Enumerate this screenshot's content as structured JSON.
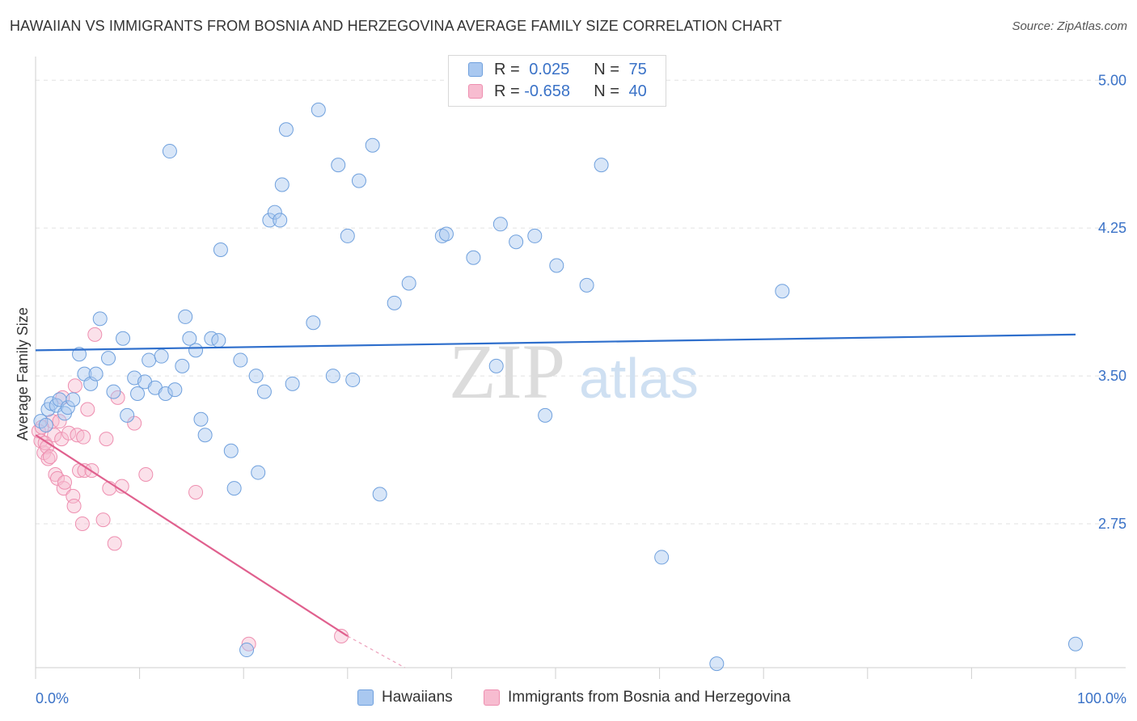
{
  "title": "HAWAIIAN VS IMMIGRANTS FROM BOSNIA AND HERZEGOVINA AVERAGE FAMILY SIZE CORRELATION CHART",
  "source": "Source: ZipAtlas.com",
  "watermark": {
    "zip": "ZIP",
    "atlas": "atlas"
  },
  "legend": {
    "series1": {
      "r_label": "R = ",
      "r_value": "0.025",
      "n_label": "N = ",
      "n_value": "75"
    },
    "series2": {
      "r_label": "R = ",
      "r_value": "-0.658",
      "n_label": "N = ",
      "n_value": "40"
    }
  },
  "colors": {
    "blue_fill": "#a9c8f0",
    "blue_stroke": "#6fa0dd",
    "blue_line": "#2f6fcc",
    "pink_fill": "#f7bcd0",
    "pink_stroke": "#ee8fb0",
    "pink_line": "#e0608e",
    "tick_label": "#3a72c7",
    "grid": "#e2e2e2"
  },
  "chart_data": {
    "type": "scatter",
    "title": "HAWAIIAN VS IMMIGRANTS FROM BOSNIA AND HERZEGOVINA AVERAGE FAMILY SIZE CORRELATION CHART",
    "xlabel": "",
    "ylabel": "Average Family Size",
    "xlim": [
      0,
      100
    ],
    "ylim": [
      2.02,
      5.12
    ],
    "x_tick_labels": [
      "0.0%",
      "100.0%"
    ],
    "y_ticks": [
      2.75,
      3.5,
      4.25,
      5.0
    ],
    "y_tick_labels": [
      "2.75",
      "3.50",
      "4.25",
      "5.00"
    ],
    "series": [
      {
        "name": "Hawaiians",
        "color": "blue",
        "trend": {
          "x": [
            0,
            100
          ],
          "y": [
            3.63,
            3.71
          ]
        },
        "points": [
          [
            0.5,
            3.27
          ],
          [
            1,
            3.25
          ],
          [
            1.2,
            3.33
          ],
          [
            1.5,
            3.36
          ],
          [
            2,
            3.35
          ],
          [
            2.3,
            3.38
          ],
          [
            2.8,
            3.31
          ],
          [
            3.1,
            3.34
          ],
          [
            3.6,
            3.38
          ],
          [
            4.2,
            3.61
          ],
          [
            4.7,
            3.51
          ],
          [
            5.3,
            3.46
          ],
          [
            5.8,
            3.51
          ],
          [
            6.2,
            3.79
          ],
          [
            7,
            3.59
          ],
          [
            7.5,
            3.42
          ],
          [
            8.4,
            3.69
          ],
          [
            8.8,
            3.3
          ],
          [
            9.5,
            3.49
          ],
          [
            9.8,
            3.41
          ],
          [
            10.5,
            3.47
          ],
          [
            10.9,
            3.58
          ],
          [
            11.5,
            3.44
          ],
          [
            12.1,
            3.6
          ],
          [
            12.5,
            3.41
          ],
          [
            13.4,
            3.43
          ],
          [
            12.9,
            4.64
          ],
          [
            14.1,
            3.55
          ],
          [
            14.4,
            3.8
          ],
          [
            14.8,
            3.69
          ],
          [
            15.4,
            3.63
          ],
          [
            15.9,
            3.28
          ],
          [
            16.3,
            3.2
          ],
          [
            16.9,
            3.69
          ],
          [
            17.6,
            3.68
          ],
          [
            17.8,
            4.14
          ],
          [
            18.8,
            3.12
          ],
          [
            19.1,
            2.93
          ],
          [
            19.7,
            3.58
          ],
          [
            20.3,
            2.11
          ],
          [
            21.2,
            3.5
          ],
          [
            21.4,
            3.01
          ],
          [
            22,
            3.42
          ],
          [
            22.5,
            4.29
          ],
          [
            23,
            4.33
          ],
          [
            23.5,
            4.29
          ],
          [
            23.7,
            4.47
          ],
          [
            24.1,
            4.75
          ],
          [
            24.7,
            3.46
          ],
          [
            26.7,
            3.77
          ],
          [
            27.2,
            4.85
          ],
          [
            28.6,
            3.5
          ],
          [
            29.1,
            4.57
          ],
          [
            30,
            4.21
          ],
          [
            30.5,
            3.48
          ],
          [
            31.1,
            4.49
          ],
          [
            32.4,
            4.67
          ],
          [
            33.1,
            2.9
          ],
          [
            34.5,
            3.87
          ],
          [
            35.9,
            3.97
          ],
          [
            39.1,
            4.21
          ],
          [
            39.5,
            4.22
          ],
          [
            42.1,
            4.1
          ],
          [
            44.3,
            3.55
          ],
          [
            44.7,
            4.27
          ],
          [
            46.2,
            4.18
          ],
          [
            48,
            4.21
          ],
          [
            49,
            3.3
          ],
          [
            50.1,
            4.06
          ],
          [
            53,
            3.96
          ],
          [
            54.4,
            4.57
          ],
          [
            60.2,
            2.58
          ],
          [
            65.5,
            2.04
          ],
          [
            71.8,
            3.93
          ],
          [
            100,
            2.14
          ]
        ]
      },
      {
        "name": "Immigrants from Bosnia and Herzegovina",
        "color": "pink",
        "trend": {
          "x": [
            0,
            30
          ],
          "y": [
            3.2,
            2.18
          ]
        },
        "trend_dashed": {
          "x": [
            30,
            35.5
          ],
          "y": [
            2.18,
            2.02
          ]
        },
        "points": [
          [
            0.3,
            3.22
          ],
          [
            0.5,
            3.17
          ],
          [
            0.8,
            3.11
          ],
          [
            0.9,
            3.16
          ],
          [
            1.1,
            3.14
          ],
          [
            1.2,
            3.08
          ],
          [
            1.4,
            3.09
          ],
          [
            1.6,
            3.27
          ],
          [
            1.8,
            3.2
          ],
          [
            1.9,
            3.0
          ],
          [
            2.1,
            2.98
          ],
          [
            2.3,
            3.27
          ],
          [
            2.5,
            3.18
          ],
          [
            2.6,
            3.39
          ],
          [
            2.7,
            2.93
          ],
          [
            2.8,
            2.96
          ],
          [
            3.2,
            3.21
          ],
          [
            3.6,
            2.89
          ],
          [
            3.7,
            2.84
          ],
          [
            3.8,
            3.45
          ],
          [
            4,
            3.2
          ],
          [
            4.2,
            3.02
          ],
          [
            4.5,
            2.75
          ],
          [
            4.6,
            3.19
          ],
          [
            4.7,
            3.02
          ],
          [
            5,
            3.33
          ],
          [
            5.4,
            3.02
          ],
          [
            5.7,
            3.71
          ],
          [
            6.5,
            2.77
          ],
          [
            6.8,
            3.18
          ],
          [
            7.1,
            2.93
          ],
          [
            7.6,
            2.65
          ],
          [
            7.9,
            3.39
          ],
          [
            8.3,
            2.94
          ],
          [
            9.5,
            3.26
          ],
          [
            10.6,
            3.0
          ],
          [
            15.4,
            2.91
          ],
          [
            20.5,
            2.14
          ],
          [
            29.4,
            2.18
          ],
          [
            0.6,
            3.24
          ]
        ]
      }
    ]
  },
  "bottom_legend": [
    {
      "label": "Hawaiians"
    },
    {
      "label": "Immigrants from Bosnia and Herzegovina"
    }
  ]
}
